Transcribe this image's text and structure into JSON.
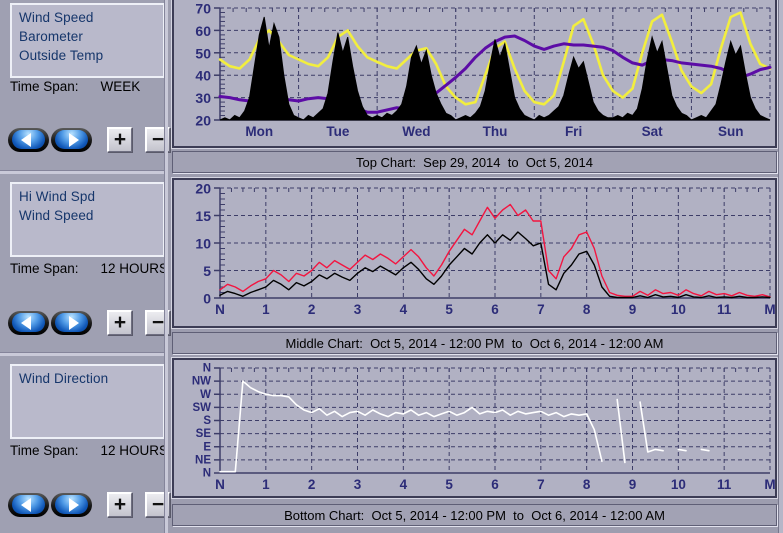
{
  "colors": {
    "background": "#9d9daf",
    "plot_background": "#b1b1c3",
    "grid": "#3d3d68",
    "tick_label": "#2c2c78",
    "wind_speed_week": "#000000",
    "outside_temp": "#f2ee3e",
    "barometer": "#5c0ca6",
    "hi_wind_spd": "#f31540",
    "wind_speed_12h": "#000000",
    "wind_direction": "#ffffff"
  },
  "controls": {
    "prev_icon": "left-arrow",
    "next_icon": "right-arrow",
    "zoom_in_label": "+",
    "zoom_out_label": "−"
  },
  "panels": [
    {
      "series": [
        "Wind Speed",
        "Barometer",
        "Outside Temp"
      ],
      "time_span_label": "Time Span:",
      "time_span": "WEEK"
    },
    {
      "series": [
        "Hi Wind Spd",
        "Wind Speed"
      ],
      "time_span_label": "Time Span:",
      "time_span": "12 HOURS"
    },
    {
      "series": [
        "Wind Direction"
      ],
      "time_span_label": "Time Span:",
      "time_span": "12 HOURS"
    }
  ],
  "chart_data": [
    {
      "type": "line",
      "title": "Top Chart:  Sep 29, 2014  to  Oct 5, 2014",
      "x_labels": [
        "Mon",
        "Tue",
        "Wed",
        "Thu",
        "Fri",
        "Sat",
        "Sun"
      ],
      "x_label_mode": "center",
      "x_divisions": 7,
      "x_minor_per_div": 6,
      "ylim": [
        20,
        70
      ],
      "y_ticks": [
        20,
        30,
        40,
        50,
        60,
        70
      ],
      "y_tick_labels": [
        "20",
        "30",
        "40",
        "50",
        "60",
        "70"
      ],
      "y_minor_step": 2,
      "y_font": 14,
      "x_font": 13.5,
      "grid_color": "#3d3d68",
      "label_color": "#2c2c78",
      "margins": {
        "l": 46,
        "t": 10,
        "r": 5,
        "b": 26
      },
      "series": [
        {
          "name": "Outside Temp",
          "color": "#f2ee3e",
          "style": "line",
          "width": 2.6,
          "values": [
            47,
            44,
            43,
            47,
            56,
            60,
            55,
            49,
            47,
            45,
            44,
            48,
            57,
            60,
            53,
            48,
            46,
            44,
            43,
            47,
            51,
            52,
            45,
            35,
            30,
            27,
            28,
            40,
            52,
            55,
            43,
            33,
            28,
            27,
            31,
            46,
            62,
            65,
            54,
            40,
            33,
            30,
            34,
            50,
            64,
            67,
            55,
            42,
            35,
            32,
            36,
            52,
            66,
            68,
            54,
            45,
            43
          ]
        },
        {
          "name": "Barometer",
          "color": "#5c0ca6",
          "style": "line",
          "width": 3,
          "values": [
            30.5,
            30,
            29,
            28.5,
            29,
            30,
            29.5,
            29,
            28.5,
            29.5,
            30,
            29.5,
            28,
            26.5,
            25,
            23.5,
            23.5,
            24.5,
            25.5,
            25,
            26.5,
            29,
            32,
            35.5,
            39,
            43,
            48,
            52,
            55,
            57,
            57.5,
            55.5,
            53,
            51.5,
            53,
            54,
            53.5,
            53.5,
            53,
            52.5,
            51,
            48,
            45.5,
            44.5,
            46.5,
            47,
            46.5,
            45.5,
            45,
            44.5,
            44,
            43,
            41,
            39,
            40.5,
            42.5,
            43.5
          ]
        },
        {
          "name": "Wind Speed",
          "color": "#000000",
          "style": "area",
          "width": 1,
          "values": [
            20,
            21,
            20,
            22,
            21,
            24,
            30,
            44,
            58,
            66,
            52,
            63,
            57,
            40,
            27,
            22,
            21,
            20,
            22,
            21,
            23,
            25,
            32,
            46,
            59,
            50,
            57,
            44,
            33,
            26,
            22,
            21,
            22,
            21,
            23,
            22,
            24,
            27,
            35,
            48,
            53,
            45,
            51,
            40,
            32,
            27,
            23,
            22,
            20,
            21,
            22,
            21,
            23,
            26,
            33,
            45,
            56,
            48,
            54,
            42,
            30,
            25,
            22,
            21,
            20,
            22,
            21,
            22,
            24,
            26,
            31,
            40,
            48,
            43,
            46,
            37,
            28,
            24,
            22,
            21,
            21,
            22,
            21,
            23,
            22,
            25,
            34,
            47,
            57,
            50,
            55,
            43,
            31,
            26,
            23,
            22,
            20,
            21,
            22,
            21,
            24,
            27,
            36,
            46,
            55,
            49,
            53,
            41,
            30,
            25,
            22,
            21,
            20
          ]
        }
      ]
    },
    {
      "type": "line",
      "title": "Middle Chart:  Oct 5, 2014 - 12:00 PM  to  Oct 6, 2014 - 12:00 AM",
      "x_labels": [
        "N",
        "1",
        "2",
        "3",
        "4",
        "5",
        "6",
        "7",
        "8",
        "9",
        "10",
        "11",
        "M"
      ],
      "x_label_mode": "boundary",
      "x_divisions": 12,
      "x_minor_per_div": 4,
      "ylim": [
        0,
        20
      ],
      "y_ticks": [
        0,
        5,
        10,
        15,
        20
      ],
      "y_tick_labels": [
        "0",
        "5",
        "10",
        "15",
        "20"
      ],
      "y_minor_step": 1,
      "y_font": 14,
      "x_font": 13.5,
      "grid_color": "#3d3d68",
      "label_color": "#2c2c78",
      "margins": {
        "l": 46,
        "t": 8,
        "r": 5,
        "b": 28
      },
      "series": [
        {
          "name": "Hi Wind Spd",
          "color": "#f31540",
          "style": "line",
          "width": 1.4,
          "values": [
            1.5,
            2.5,
            2,
            1.2,
            2.2,
            3,
            3.5,
            5,
            4.2,
            3,
            4.5,
            4,
            5,
            6.5,
            5.5,
            6.8,
            6,
            5.2,
            6.5,
            7.8,
            7,
            8,
            7.2,
            6.2,
            7.5,
            8.8,
            7.5,
            5.5,
            4,
            6,
            8.5,
            10.5,
            12.5,
            11.5,
            14,
            16.5,
            14.5,
            16,
            17,
            15,
            16,
            14,
            14,
            5,
            3.5,
            7.5,
            9,
            11.5,
            12,
            9,
            4,
            1,
            0.5,
            0.3,
            0.3,
            1.2,
            0.5,
            1.5,
            0.8,
            1,
            0.5,
            1.5,
            0.8,
            0.4,
            1.2,
            0.6,
            0.8,
            0.4,
            1,
            0.5,
            0.3,
            0.6,
            0.2
          ]
        },
        {
          "name": "Wind Speed",
          "color": "#000000",
          "style": "line",
          "width": 1.4,
          "values": [
            0.5,
            1.2,
            0.8,
            0.3,
            1,
            1.5,
            2,
            3.2,
            2.5,
            1.5,
            2.8,
            2.2,
            3,
            4.2,
            3.5,
            4.5,
            3.8,
            3.2,
            4.5,
            5.5,
            4.8,
            5.8,
            5,
            4.2,
            5.5,
            6.5,
            5.2,
            3.5,
            2.5,
            4,
            6,
            7.5,
            9,
            8,
            10,
            11.5,
            10,
            11.5,
            10.5,
            12,
            10.8,
            9.5,
            10,
            2.5,
            1.5,
            4.5,
            6,
            8,
            8.5,
            6,
            2,
            0.3,
            0.1,
            0.1,
            0.1,
            0.4,
            0.1,
            0.6,
            0.2,
            0.3,
            0.1,
            0.6,
            0.2,
            0.1,
            0.4,
            0.1,
            0.2,
            0.1,
            0.3,
            0.1,
            0.1,
            0.2,
            0.1
          ]
        }
      ]
    },
    {
      "type": "line",
      "title": "Bottom Chart:  Oct 5, 2014 - 12:00 PM  to  Oct 6, 2014 - 12:00 AM",
      "x_labels": [
        "N",
        "1",
        "2",
        "3",
        "4",
        "5",
        "6",
        "7",
        "8",
        "9",
        "10",
        "11",
        "M"
      ],
      "x_label_mode": "boundary",
      "x_divisions": 12,
      "x_minor_per_div": 4,
      "ylim": [
        0,
        8
      ],
      "y_ticks": [
        0,
        1,
        2,
        3,
        4,
        5,
        6,
        7,
        8
      ],
      "y_tick_labels": [
        "N",
        "NE",
        "E",
        "SE",
        "S",
        "SW",
        "W",
        "NW",
        "N"
      ],
      "y_minor_step": 0,
      "y_font": 11.5,
      "x_font": 13.5,
      "grid_color": "#3d3d68",
      "label_color": "#2c2c78",
      "margins": {
        "l": 46,
        "t": 8,
        "r": 5,
        "b": 23
      },
      "series": [
        {
          "name": "Wind Direction",
          "color": "#ffffff",
          "style": "line",
          "width": 1.6,
          "values": [
            0.1,
            0.1,
            0.1,
            7,
            6.5,
            6.2,
            6,
            5.9,
            5.9,
            5.8,
            5.2,
            4.8,
            4.6,
            4.9,
            4.4,
            4.7,
            4.3,
            4.6,
            4.7,
            4.4,
            4.8,
            4.5,
            4.3,
            4.6,
            4.5,
            4.8,
            4.4,
            4.6,
            4.3,
            4.5,
            4.7,
            4.4,
            4.6,
            5,
            4.5,
            4.7,
            4.6,
            4.8,
            4.4,
            4.7,
            4.5,
            4.6,
            4.7,
            4.4,
            4.6,
            4.3,
            4.5,
            4.4,
            4.5,
            3.3,
            0.9,
            null,
            5.6,
            0.8,
            null,
            5.4,
            1.6,
            1.8,
            1.7,
            null,
            1.8,
            1.7,
            null,
            1.8,
            1.7,
            null,
            null,
            null,
            null,
            null,
            null,
            null,
            null
          ]
        }
      ]
    }
  ]
}
